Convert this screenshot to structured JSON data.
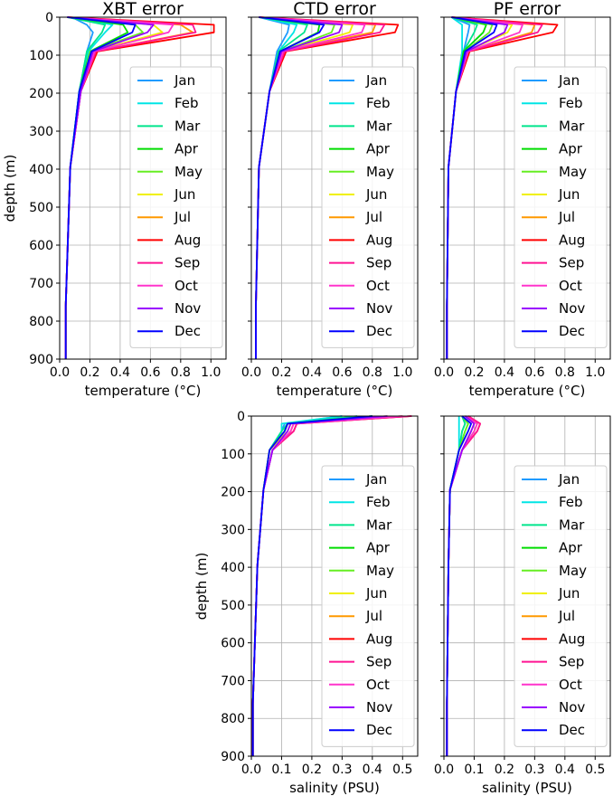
{
  "months": [
    "Jan",
    "Feb",
    "Mar",
    "Apr",
    "May",
    "Jun",
    "Jul",
    "Aug",
    "Sep",
    "Oct",
    "Nov",
    "Dec"
  ],
  "colors": [
    "#1f9bff",
    "#00e5e5",
    "#00e58c",
    "#00dd00",
    "#66ee22",
    "#f0f000",
    "#ff9900",
    "#ff0000",
    "#ff1493",
    "#ff33cc",
    "#9900ff",
    "#0000ff"
  ],
  "chart_data": [
    {
      "type": "line",
      "title": "XBT error",
      "xlabel": "temperature ($^\\circ C$)",
      "ylabel": "depth (m)",
      "xlim": [
        0,
        1.1
      ],
      "ylim": [
        900,
        0
      ],
      "xticks": [
        "0.0",
        "0.2",
        "0.4",
        "0.6",
        "0.8",
        "1.0"
      ],
      "yticks": [
        "0",
        "100",
        "200",
        "300",
        "400",
        "500",
        "600",
        "700",
        "800",
        "900"
      ],
      "show_yticklabels": true,
      "grid": true,
      "legend_position": "right",
      "depths": [
        0,
        20,
        40,
        90,
        195,
        395,
        760,
        900
      ],
      "series": [
        {
          "name": "Jan",
          "values": [
            0.08,
            0.18,
            0.22,
            0.18,
            0.13,
            0.07,
            0.04,
            0.04
          ]
        },
        {
          "name": "Feb",
          "values": [
            0.05,
            0.35,
            0.3,
            0.19,
            0.13,
            0.07,
            0.04,
            0.04
          ]
        },
        {
          "name": "Mar",
          "values": [
            0.05,
            0.3,
            0.28,
            0.18,
            0.13,
            0.07,
            0.04,
            0.04
          ]
        },
        {
          "name": "Apr",
          "values": [
            0.05,
            0.42,
            0.45,
            0.2,
            0.13,
            0.07,
            0.04,
            0.04
          ]
        },
        {
          "name": "May",
          "values": [
            0.05,
            0.5,
            0.55,
            0.2,
            0.14,
            0.07,
            0.04,
            0.04
          ]
        },
        {
          "name": "Jun",
          "values": [
            0.05,
            0.62,
            0.68,
            0.22,
            0.14,
            0.07,
            0.04,
            0.04
          ]
        },
        {
          "name": "Jul",
          "values": [
            0.05,
            0.8,
            0.88,
            0.24,
            0.14,
            0.07,
            0.04,
            0.04
          ]
        },
        {
          "name": "Aug",
          "values": [
            0.05,
            1.02,
            1.02,
            0.25,
            0.14,
            0.07,
            0.04,
            0.04
          ]
        },
        {
          "name": "Sep",
          "values": [
            0.05,
            0.88,
            0.9,
            0.24,
            0.14,
            0.07,
            0.04,
            0.04
          ]
        },
        {
          "name": "Oct",
          "values": [
            0.05,
            0.75,
            0.72,
            0.23,
            0.14,
            0.07,
            0.04,
            0.04
          ]
        },
        {
          "name": "Nov",
          "values": [
            0.05,
            0.62,
            0.58,
            0.22,
            0.14,
            0.07,
            0.04,
            0.04
          ]
        },
        {
          "name": "Dec",
          "values": [
            0.05,
            0.5,
            0.48,
            0.21,
            0.13,
            0.07,
            0.04,
            0.04
          ]
        }
      ]
    },
    {
      "type": "line",
      "title": "CTD error",
      "xlabel": "temperature ($^\\circ C$)",
      "ylabel": "",
      "xlim": [
        0,
        1.1
      ],
      "ylim": [
        900,
        0
      ],
      "xticks": [
        "0.0",
        "0.2",
        "0.4",
        "0.6",
        "0.8",
        "1.0"
      ],
      "yticks": [],
      "show_yticklabels": false,
      "grid": true,
      "legend_position": "right",
      "depths": [
        0,
        20,
        40,
        90,
        195,
        395,
        760,
        900
      ],
      "series": [
        {
          "name": "Jan",
          "values": [
            0.05,
            0.25,
            0.24,
            0.17,
            0.12,
            0.05,
            0.03,
            0.03
          ]
        },
        {
          "name": "Feb",
          "values": [
            0.05,
            0.3,
            0.28,
            0.18,
            0.12,
            0.05,
            0.03,
            0.03
          ]
        },
        {
          "name": "Mar",
          "values": [
            0.05,
            0.37,
            0.35,
            0.18,
            0.12,
            0.05,
            0.03,
            0.03
          ]
        },
        {
          "name": "Apr",
          "values": [
            0.05,
            0.45,
            0.44,
            0.19,
            0.12,
            0.05,
            0.03,
            0.03
          ]
        },
        {
          "name": "May",
          "values": [
            0.05,
            0.55,
            0.53,
            0.2,
            0.12,
            0.05,
            0.03,
            0.03
          ]
        },
        {
          "name": "Jun",
          "values": [
            0.05,
            0.67,
            0.65,
            0.21,
            0.12,
            0.05,
            0.03,
            0.03
          ]
        },
        {
          "name": "Jul",
          "values": [
            0.05,
            0.82,
            0.8,
            0.22,
            0.12,
            0.05,
            0.03,
            0.03
          ]
        },
        {
          "name": "Aug",
          "values": [
            0.05,
            0.97,
            0.95,
            0.23,
            0.12,
            0.05,
            0.03,
            0.03
          ]
        },
        {
          "name": "Sep",
          "values": [
            0.05,
            0.88,
            0.85,
            0.22,
            0.12,
            0.05,
            0.03,
            0.03
          ]
        },
        {
          "name": "Oct",
          "values": [
            0.05,
            0.75,
            0.73,
            0.21,
            0.12,
            0.05,
            0.03,
            0.03
          ]
        },
        {
          "name": "Nov",
          "values": [
            0.05,
            0.6,
            0.58,
            0.2,
            0.12,
            0.05,
            0.03,
            0.03
          ]
        },
        {
          "name": "Dec",
          "values": [
            0.05,
            0.48,
            0.45,
            0.19,
            0.12,
            0.05,
            0.03,
            0.03
          ]
        }
      ]
    },
    {
      "type": "line",
      "title": "PF error",
      "xlabel": "temperature ($^\\circ C$)",
      "ylabel": "",
      "xlim": [
        0,
        1.1
      ],
      "ylim": [
        900,
        0
      ],
      "xticks": [
        "0.0",
        "0.2",
        "0.4",
        "0.6",
        "0.8",
        "1.0"
      ],
      "yticks": [],
      "show_yticklabels": false,
      "grid": true,
      "legend_position": "right",
      "depths": [
        0,
        20,
        40,
        90,
        195,
        395,
        760,
        900
      ],
      "series": [
        {
          "name": "Jan",
          "values": [
            0.05,
            0.17,
            0.16,
            0.13,
            0.08,
            0.03,
            0.02,
            0.02
          ]
        },
        {
          "name": "Feb",
          "values": [
            0.05,
            0.12,
            0.12,
            0.12,
            0.08,
            0.03,
            0.02,
            0.02
          ]
        },
        {
          "name": "Mar",
          "values": [
            0.05,
            0.22,
            0.2,
            0.13,
            0.08,
            0.03,
            0.02,
            0.02
          ]
        },
        {
          "name": "Apr",
          "values": [
            0.05,
            0.28,
            0.26,
            0.13,
            0.08,
            0.03,
            0.02,
            0.02
          ]
        },
        {
          "name": "May",
          "values": [
            0.05,
            0.32,
            0.3,
            0.14,
            0.08,
            0.03,
            0.02,
            0.02
          ]
        },
        {
          "name": "Jun",
          "values": [
            0.05,
            0.45,
            0.42,
            0.15,
            0.08,
            0.03,
            0.02,
            0.02
          ]
        },
        {
          "name": "Jul",
          "values": [
            0.05,
            0.6,
            0.58,
            0.16,
            0.08,
            0.03,
            0.02,
            0.02
          ]
        },
        {
          "name": "Aug",
          "values": [
            0.05,
            0.75,
            0.72,
            0.17,
            0.08,
            0.03,
            0.02,
            0.02
          ]
        },
        {
          "name": "Sep",
          "values": [
            0.05,
            0.65,
            0.62,
            0.16,
            0.08,
            0.03,
            0.02,
            0.02
          ]
        },
        {
          "name": "Oct",
          "values": [
            0.05,
            0.52,
            0.5,
            0.16,
            0.08,
            0.03,
            0.02,
            0.02
          ]
        },
        {
          "name": "Nov",
          "values": [
            0.05,
            0.42,
            0.4,
            0.15,
            0.08,
            0.03,
            0.02,
            0.02
          ]
        },
        {
          "name": "Dec",
          "values": [
            0.05,
            0.35,
            0.33,
            0.14,
            0.08,
            0.03,
            0.02,
            0.02
          ]
        }
      ]
    },
    {
      "type": "line",
      "title": "",
      "xlabel": "salinity (PSU)",
      "ylabel": "depth (m)",
      "xlim": [
        0,
        0.55
      ],
      "ylim": [
        900,
        0
      ],
      "xticks": [
        "0.0",
        "0.1",
        "0.2",
        "0.3",
        "0.4",
        "0.5"
      ],
      "yticks": [
        "0",
        "100",
        "200",
        "300",
        "400",
        "500",
        "600",
        "700",
        "800",
        "900"
      ],
      "show_yticklabels": true,
      "grid": true,
      "legend_position": "right",
      "depths": [
        0,
        20,
        40,
        90,
        195,
        395,
        760,
        900
      ],
      "series": [
        {
          "name": "Jan",
          "values": [
            0.3,
            0.11,
            0.1,
            0.06,
            0.04,
            0.02,
            0.005,
            0.005
          ]
        },
        {
          "name": "Feb",
          "values": [
            0.3,
            0.1,
            0.1,
            0.06,
            0.04,
            0.02,
            0.005,
            0.005
          ]
        },
        {
          "name": "Mar",
          "values": [
            0.35,
            0.12,
            0.1,
            0.06,
            0.04,
            0.02,
            0.005,
            0.005
          ]
        },
        {
          "name": "Apr",
          "values": [
            0.4,
            0.12,
            0.11,
            0.06,
            0.04,
            0.02,
            0.005,
            0.005
          ]
        },
        {
          "name": "May",
          "values": [
            0.4,
            0.12,
            0.11,
            0.06,
            0.04,
            0.02,
            0.005,
            0.005
          ]
        },
        {
          "name": "Jun",
          "values": [
            0.45,
            0.13,
            0.12,
            0.06,
            0.04,
            0.02,
            0.005,
            0.005
          ]
        },
        {
          "name": "Jul",
          "values": [
            0.5,
            0.14,
            0.13,
            0.07,
            0.04,
            0.02,
            0.005,
            0.005
          ]
        },
        {
          "name": "Aug",
          "values": [
            0.53,
            0.15,
            0.14,
            0.07,
            0.04,
            0.02,
            0.005,
            0.005
          ]
        },
        {
          "name": "Sep",
          "values": [
            0.53,
            0.15,
            0.14,
            0.07,
            0.04,
            0.02,
            0.005,
            0.005
          ]
        },
        {
          "name": "Oct",
          "values": [
            0.5,
            0.14,
            0.13,
            0.07,
            0.04,
            0.02,
            0.005,
            0.005
          ]
        },
        {
          "name": "Nov",
          "values": [
            0.45,
            0.13,
            0.12,
            0.07,
            0.04,
            0.02,
            0.005,
            0.005
          ]
        },
        {
          "name": "Dec",
          "values": [
            0.4,
            0.12,
            0.11,
            0.06,
            0.04,
            0.02,
            0.005,
            0.005
          ]
        }
      ]
    },
    {
      "type": "line",
      "title": "",
      "xlabel": "salinity (PSU)",
      "ylabel": "",
      "xlim": [
        0,
        0.55
      ],
      "ylim": [
        900,
        0
      ],
      "xticks": [
        "0.0",
        "0.1",
        "0.2",
        "0.3",
        "0.4",
        "0.5"
      ],
      "yticks": [],
      "show_yticklabels": false,
      "grid": true,
      "legend_position": "right",
      "depths": [
        0,
        20,
        40,
        90,
        195,
        395,
        760,
        900
      ],
      "series": [
        {
          "name": "Jan",
          "values": [
            0.06,
            0.07,
            0.06,
            0.05,
            0.02,
            0.015,
            0.01,
            0.01
          ]
        },
        {
          "name": "Feb",
          "values": [
            0.05,
            0.05,
            0.05,
            0.05,
            0.02,
            0.015,
            0.01,
            0.01
          ]
        },
        {
          "name": "Mar",
          "values": [
            0.06,
            0.07,
            0.06,
            0.05,
            0.02,
            0.015,
            0.01,
            0.01
          ]
        },
        {
          "name": "Apr",
          "values": [
            0.06,
            0.08,
            0.07,
            0.05,
            0.02,
            0.015,
            0.01,
            0.01
          ]
        },
        {
          "name": "May",
          "values": [
            0.06,
            0.08,
            0.07,
            0.05,
            0.02,
            0.015,
            0.01,
            0.01
          ]
        },
        {
          "name": "Jun",
          "values": [
            0.07,
            0.1,
            0.09,
            0.06,
            0.02,
            0.015,
            0.01,
            0.01
          ]
        },
        {
          "name": "Jul",
          "values": [
            0.07,
            0.11,
            0.1,
            0.06,
            0.02,
            0.015,
            0.01,
            0.01
          ]
        },
        {
          "name": "Aug",
          "values": [
            0.08,
            0.12,
            0.11,
            0.06,
            0.02,
            0.015,
            0.01,
            0.01
          ]
        },
        {
          "name": "Sep",
          "values": [
            0.08,
            0.12,
            0.11,
            0.06,
            0.02,
            0.015,
            0.01,
            0.01
          ]
        },
        {
          "name": "Oct",
          "values": [
            0.07,
            0.11,
            0.1,
            0.06,
            0.02,
            0.015,
            0.01,
            0.01
          ]
        },
        {
          "name": "Nov",
          "values": [
            0.07,
            0.1,
            0.09,
            0.06,
            0.02,
            0.015,
            0.01,
            0.01
          ]
        },
        {
          "name": "Dec",
          "values": [
            0.06,
            0.09,
            0.08,
            0.05,
            0.02,
            0.015,
            0.01,
            0.01
          ]
        }
      ]
    }
  ]
}
